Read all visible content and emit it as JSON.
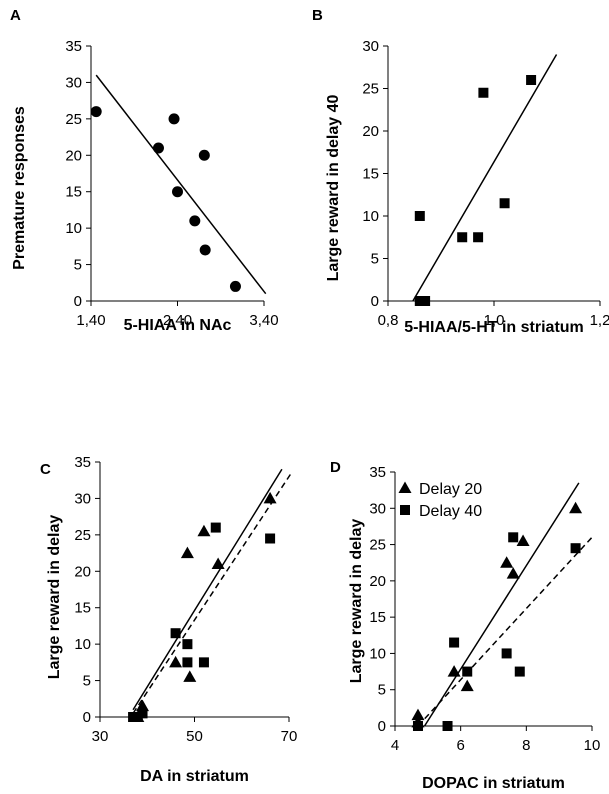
{
  "chart_data": [
    {
      "letter": "A",
      "type": "scatter",
      "xlabel": "5-HIAA in NAc",
      "ylabel": "Premature responses",
      "xlim": [
        1.4,
        3.4
      ],
      "ylim": [
        0,
        35
      ],
      "xticks": [
        1.4,
        2.4,
        3.4
      ],
      "xtick_labels": [
        "1,40",
        "2,40",
        "3,40"
      ],
      "yticks": [
        0,
        5,
        10,
        15,
        20,
        25,
        30,
        35
      ],
      "ytick_labels": [
        "0",
        "5",
        "10",
        "15",
        "20",
        "25",
        "30",
        "35"
      ],
      "series": [
        {
          "marker": "circle",
          "points": [
            [
              1.46,
              26
            ],
            [
              2.18,
              21
            ],
            [
              2.36,
              25
            ],
            [
              2.4,
              15
            ],
            [
              2.71,
              20
            ],
            [
              2.6,
              11
            ],
            [
              2.72,
              7
            ],
            [
              3.07,
              2
            ]
          ],
          "fit": {
            "style": "solid",
            "from": [
              1.46,
              31
            ],
            "to": [
              3.42,
              1
            ]
          }
        }
      ]
    },
    {
      "letter": "B",
      "type": "scatter",
      "xlabel": "5-HIAA/5-HT in striatum",
      "ylabel": "Large reward in delay 40",
      "xlim": [
        0.8,
        1.2
      ],
      "ylim": [
        0,
        30
      ],
      "xticks": [
        0.8,
        1.0,
        1.2
      ],
      "xtick_labels": [
        "0,8",
        "1,0",
        "1,2"
      ],
      "yticks": [
        0,
        5,
        10,
        15,
        20,
        25,
        30
      ],
      "ytick_labels": [
        "0",
        "5",
        "10",
        "15",
        "20",
        "25",
        "30"
      ],
      "series": [
        {
          "marker": "square",
          "points": [
            [
              0.86,
              10
            ],
            [
              0.86,
              0
            ],
            [
              0.87,
              0
            ],
            [
              0.94,
              7.5
            ],
            [
              0.97,
              7.5
            ],
            [
              0.98,
              24.5
            ],
            [
              1.02,
              11.5
            ],
            [
              1.07,
              26
            ]
          ],
          "fit": {
            "style": "solid",
            "from": [
              0.847,
              0
            ],
            "to": [
              1.118,
              29
            ]
          }
        }
      ]
    },
    {
      "letter": "C",
      "type": "scatter",
      "xlabel": "DA in striatum",
      "ylabel": "Large reward in delay",
      "xlim": [
        30,
        70
      ],
      "ylim": [
        0,
        35
      ],
      "xticks": [
        30,
        50,
        70
      ],
      "xtick_labels": [
        "30",
        "50",
        "70"
      ],
      "yticks": [
        0,
        5,
        10,
        15,
        20,
        25,
        30,
        35
      ],
      "ytick_labels": [
        "0",
        "5",
        "10",
        "15",
        "20",
        "25",
        "30",
        "35"
      ],
      "series": [
        {
          "name": "Delay 20",
          "marker": "triangle",
          "points": [
            [
              38,
              0
            ],
            [
              39,
              1.5
            ],
            [
              46,
              7.5
            ],
            [
              48.5,
              22.5
            ],
            [
              49,
              5.5
            ],
            [
              52,
              25.5
            ],
            [
              55,
              21
            ],
            [
              66,
              30
            ]
          ],
          "fit": {
            "style": "solid",
            "from": [
              37,
              1
            ],
            "to": [
              68.5,
              34
            ]
          }
        },
        {
          "name": "Delay 40",
          "marker": "square",
          "points": [
            [
              37,
              0
            ],
            [
              38,
              0
            ],
            [
              39,
              0.5
            ],
            [
              46,
              11.5
            ],
            [
              48.5,
              10
            ],
            [
              48.5,
              7.5
            ],
            [
              52,
              7.5
            ],
            [
              54.5,
              26
            ],
            [
              66,
              24.5
            ]
          ],
          "fit": {
            "style": "dashed",
            "from": [
              37,
              0.5
            ],
            "to": [
              70.5,
              33.5
            ]
          }
        }
      ]
    },
    {
      "letter": "D",
      "type": "scatter",
      "xlabel": "DOPAC in striatum",
      "ylabel": "Large reward in delay",
      "xlim": [
        4,
        10
      ],
      "ylim": [
        0,
        35
      ],
      "xticks": [
        4,
        6,
        8,
        10
      ],
      "xtick_labels": [
        "4",
        "6",
        "8",
        "10"
      ],
      "yticks": [
        0,
        5,
        10,
        15,
        20,
        25,
        30,
        35
      ],
      "ytick_labels": [
        "0",
        "5",
        "10",
        "15",
        "20",
        "25",
        "30",
        "35"
      ],
      "legend": {
        "position": "top-left"
      },
      "series": [
        {
          "name": "Delay 20",
          "marker": "triangle",
          "points": [
            [
              4.7,
              1.5
            ],
            [
              4.7,
              0.5
            ],
            [
              5.8,
              7.5
            ],
            [
              6.2,
              5.5
            ],
            [
              7.4,
              22.5
            ],
            [
              7.6,
              21
            ],
            [
              7.9,
              25.5
            ],
            [
              9.5,
              30
            ]
          ],
          "fit": {
            "style": "solid",
            "from": [
              4.9,
              0
            ],
            "to": [
              9.6,
              33.5
            ]
          }
        },
        {
          "name": "Delay 40",
          "marker": "square",
          "points": [
            [
              4.7,
              0
            ],
            [
              5.6,
              0
            ],
            [
              5.8,
              11.5
            ],
            [
              6.2,
              7.5
            ],
            [
              7.4,
              10
            ],
            [
              7.6,
              26
            ],
            [
              7.8,
              7.5
            ],
            [
              9.5,
              24.5
            ]
          ],
          "fit": {
            "style": "dashed",
            "from": [
              4.7,
              0
            ],
            "to": [
              10,
              26
            ]
          }
        }
      ]
    }
  ]
}
